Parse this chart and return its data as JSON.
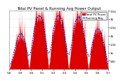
{
  "title": "Total PV Panel & Running Avg Power Output",
  "bg_color": "#ffffff",
  "plot_bg": "#ffffff",
  "grid_color": "#aaaaaa",
  "bar_color": "#dd0000",
  "avg_color": "#0000cc",
  "ylim": [
    0,
    3500
  ],
  "yticks": [
    500,
    1000,
    1500,
    2000,
    2500,
    3000,
    3500
  ],
  "ytick_labels": [
    "500",
    "1k",
    "1.5k",
    "2k",
    "2.5k",
    "3k",
    "3.5k"
  ],
  "n_points": 600,
  "title_fontsize": 4.0,
  "tick_fontsize": 3.0,
  "legend_fontsize": 2.8
}
